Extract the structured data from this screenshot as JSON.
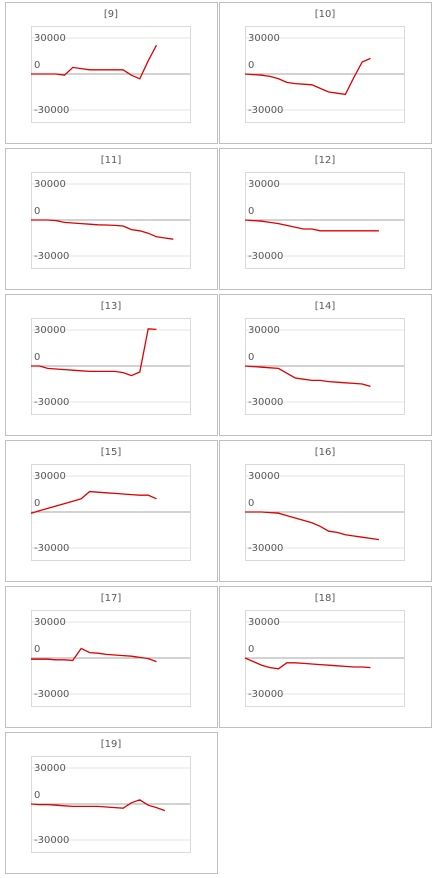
{
  "chart_data": [
    {
      "type": "line",
      "title": "[9]",
      "color": "#e00000",
      "ylim": [
        -40000,
        40000
      ],
      "yticks": [
        -30000,
        0,
        30000
      ],
      "grid": true,
      "values": [
        0,
        0,
        0,
        0,
        -1000,
        5500,
        4500,
        3500,
        3500,
        3500,
        3500,
        3500,
        -1000,
        -4000,
        11000,
        24000,
        null,
        null,
        null,
        null
      ]
    },
    {
      "type": "line",
      "title": "[10]",
      "color": "#e00000",
      "ylim": [
        -40000,
        40000
      ],
      "yticks": [
        -30000,
        0,
        30000
      ],
      "grid": true,
      "values": [
        0,
        -500,
        -1000,
        -2000,
        -4000,
        -7000,
        -8000,
        -8500,
        -9000,
        -12000,
        -15000,
        -16000,
        -17000,
        -3000,
        10000,
        13000,
        null,
        null,
        null,
        null
      ]
    },
    {
      "type": "line",
      "title": "[11]",
      "color": "#e00000",
      "ylim": [
        -40000,
        40000
      ],
      "yticks": [
        -30000,
        0,
        30000
      ],
      "grid": true,
      "values": [
        0,
        0,
        0,
        -500,
        -2000,
        -2500,
        -3000,
        -3500,
        -4000,
        -4200,
        -4500,
        -5000,
        -8000,
        -9000,
        -11000,
        -14000,
        -15000,
        -16000,
        null,
        null
      ]
    },
    {
      "type": "line",
      "title": "[12]",
      "color": "#e00000",
      "ylim": [
        -40000,
        40000
      ],
      "yticks": [
        -30000,
        0,
        30000
      ],
      "grid": true,
      "values": [
        0,
        -500,
        -1000,
        -2000,
        -3000,
        -4500,
        -6000,
        -7500,
        -7500,
        -9000,
        -9000,
        -9000,
        -9000,
        -9000,
        -9000,
        -9000,
        -9000,
        null,
        null,
        null
      ]
    },
    {
      "type": "line",
      "title": "[13]",
      "color": "#e00000",
      "ylim": [
        -40000,
        40000
      ],
      "yticks": [
        -30000,
        0,
        30000
      ],
      "grid": true,
      "values": [
        0,
        0,
        -2000,
        -2500,
        -3000,
        -3500,
        -4000,
        -4500,
        -4500,
        -4500,
        -4500,
        -5500,
        -8000,
        -5000,
        31000,
        30500,
        null,
        null,
        null,
        null
      ]
    },
    {
      "type": "line",
      "title": "[14]",
      "color": "#e00000",
      "ylim": [
        -40000,
        40000
      ],
      "yticks": [
        -30000,
        0,
        30000
      ],
      "grid": true,
      "values": [
        0,
        -500,
        -1000,
        -1500,
        -2000,
        -6000,
        -10000,
        -11000,
        -12000,
        -12000,
        -13000,
        -13500,
        -14000,
        -14500,
        -15000,
        -17000,
        null,
        null,
        null,
        null
      ]
    },
    {
      "type": "line",
      "title": "[15]",
      "color": "#e00000",
      "ylim": [
        -40000,
        40000
      ],
      "yticks": [
        -30000,
        0,
        30000
      ],
      "grid": true,
      "values": [
        -1000,
        1000,
        3000,
        5000,
        7000,
        9000,
        11000,
        17000,
        16500,
        16000,
        15500,
        15000,
        14500,
        14000,
        14000,
        11000,
        null,
        null,
        null,
        null
      ]
    },
    {
      "type": "line",
      "title": "[16]",
      "color": "#e00000",
      "ylim": [
        -40000,
        40000
      ],
      "yticks": [
        -30000,
        0,
        30000
      ],
      "grid": true,
      "values": [
        0,
        0,
        0,
        -500,
        -1000,
        -3000,
        -5000,
        -7000,
        -9000,
        -12000,
        -16000,
        -17000,
        -19000,
        -20000,
        -21000,
        -22000,
        -23000,
        null,
        null,
        null
      ]
    },
    {
      "type": "line",
      "title": "[17]",
      "color": "#e00000",
      "ylim": [
        -40000,
        40000
      ],
      "yticks": [
        -30000,
        0,
        30000
      ],
      "grid": true,
      "values": [
        -1000,
        -1000,
        -1000,
        -1500,
        -1500,
        -2000,
        8000,
        4500,
        4000,
        3000,
        2500,
        2000,
        1500,
        500,
        -500,
        -3000,
        null,
        null,
        null,
        null
      ]
    },
    {
      "type": "line",
      "title": "[18]",
      "color": "#e00000",
      "ylim": [
        -40000,
        40000
      ],
      "yticks": [
        -30000,
        0,
        30000
      ],
      "grid": true,
      "values": [
        0,
        -3000,
        -6000,
        -8000,
        -9000,
        -4000,
        -4000,
        -4500,
        -5000,
        -5500,
        -6000,
        -6500,
        -7000,
        -7500,
        -7500,
        -8000,
        null,
        null,
        null,
        null
      ]
    },
    {
      "type": "line",
      "title": "[19]",
      "color": "#e00000",
      "ylim": [
        -40000,
        40000
      ],
      "yticks": [
        -30000,
        0,
        30000
      ],
      "grid": true,
      "values": [
        0,
        -500,
        -500,
        -1000,
        -1500,
        -2000,
        -2000,
        -2000,
        -2000,
        -2500,
        -3000,
        -3500,
        1000,
        3500,
        -1000,
        -3000,
        -5500,
        null,
        null,
        null
      ]
    }
  ]
}
